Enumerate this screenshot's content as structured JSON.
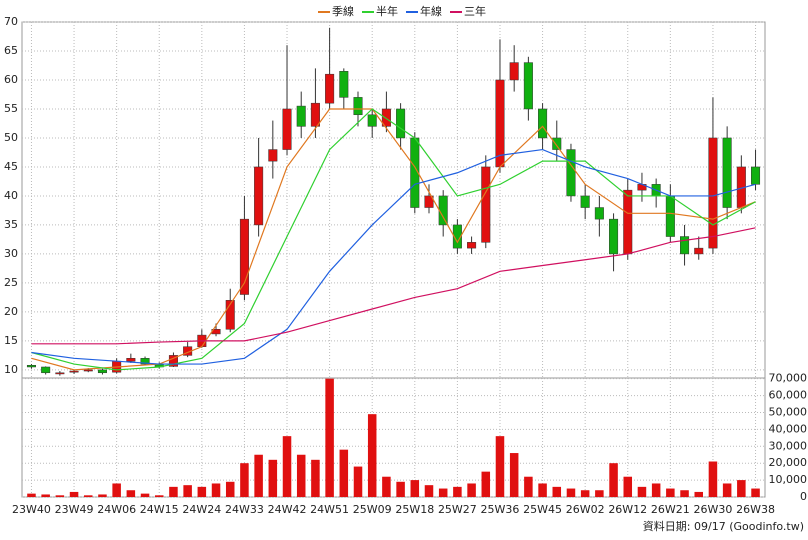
{
  "chart_data": {
    "type": "candlestick",
    "legend_position": "top",
    "up_color": "#e01010",
    "down_color": "#10b010",
    "volume_color": "#e01010",
    "x": [
      0,
      3,
      6,
      9,
      12,
      15,
      18,
      21,
      24,
      27,
      30,
      33,
      36,
      39,
      42,
      45,
      48,
      51,
      54,
      57,
      60,
      63,
      66,
      69,
      72,
      75,
      78,
      81,
      84,
      87,
      90,
      93,
      96,
      99,
      102,
      105,
      108,
      111,
      114,
      117,
      120,
      123,
      126,
      129,
      132,
      135,
      138,
      141,
      144,
      147,
      150,
      153
    ],
    "open": [
      10.8,
      10.5,
      9.3,
      9.6,
      9.8,
      10,
      9.6,
      11.5,
      12,
      11,
      10.6,
      12.5,
      14,
      16.2,
      17,
      23,
      35,
      46,
      48,
      55.5,
      52,
      56,
      61.5,
      57,
      54,
      52,
      55,
      50,
      38,
      40,
      35,
      31,
      32,
      45,
      60,
      63,
      55,
      50,
      48,
      40,
      38,
      36,
      30,
      41,
      42,
      40,
      33,
      30,
      31,
      50,
      38,
      45
    ],
    "high": [
      11,
      10.6,
      9.8,
      10,
      10.3,
      10.2,
      12,
      12.8,
      12.3,
      11.3,
      13,
      14.8,
      17,
      18,
      24,
      40,
      50,
      53,
      66,
      58,
      62,
      69,
      62,
      58,
      55,
      58,
      56,
      51,
      42,
      41,
      36,
      33,
      47,
      67,
      66,
      64,
      56,
      53,
      49,
      42,
      40,
      37,
      43,
      44,
      43,
      42,
      35,
      33,
      57,
      52,
      47,
      48
    ],
    "low": [
      10.2,
      9.2,
      9,
      9.3,
      9.6,
      9.2,
      9.4,
      11.2,
      10.8,
      10.2,
      10.5,
      12.2,
      13.8,
      15.8,
      16.5,
      22,
      33,
      43,
      47,
      50,
      50,
      55,
      55,
      52,
      50,
      51,
      48,
      37,
      37,
      33,
      30,
      30,
      31,
      44,
      58,
      53,
      48,
      46,
      39,
      36,
      33,
      27,
      29,
      39,
      38,
      32,
      28,
      29,
      30,
      36,
      37,
      41
    ],
    "close": [
      10.5,
      9.5,
      9.5,
      9.8,
      10,
      9.5,
      11.5,
      12,
      11,
      10.5,
      12.5,
      14,
      16,
      17,
      22,
      36,
      45,
      48,
      55,
      52,
      56,
      61,
      57,
      54,
      52,
      55,
      50,
      38,
      40,
      35,
      31,
      32,
      45,
      60,
      63,
      55,
      50,
      48,
      40,
      38,
      36,
      30,
      41,
      42,
      40,
      33,
      30,
      31,
      50,
      38,
      45,
      42
    ],
    "volume": [
      2000,
      1500,
      1000,
      3000,
      1000,
      1500,
      8000,
      4000,
      2000,
      1000,
      6000,
      7000,
      6000,
      8000,
      9000,
      20000,
      25000,
      22000,
      36000,
      25000,
      22000,
      70000,
      28000,
      18000,
      49000,
      12000,
      9000,
      10000,
      7000,
      5000,
      6000,
      8000,
      15000,
      36000,
      26000,
      12000,
      8000,
      6000,
      5000,
      4000,
      4000,
      20000,
      12000,
      6000,
      8000,
      5000,
      4000,
      3000,
      21000,
      8000,
      10000,
      5000
    ],
    "lines": [
      {
        "name": "季線",
        "color": "#e07820",
        "x": [
          0,
          9,
          18,
          27,
          36,
          45,
          54,
          63,
          72,
          81,
          90,
          99,
          108,
          117,
          126,
          135,
          144,
          153
        ],
        "values": [
          12,
          10,
          10.5,
          11,
          14,
          25,
          45,
          55,
          55,
          45,
          32,
          45,
          52,
          42,
          37,
          37,
          36,
          39
        ]
      },
      {
        "name": "半年",
        "color": "#30d030",
        "x": [
          0,
          9,
          18,
          27,
          36,
          45,
          54,
          63,
          72,
          81,
          90,
          99,
          108,
          117,
          126,
          135,
          144,
          153
        ],
        "values": [
          13,
          11,
          10,
          10.5,
          12,
          18,
          33,
          48,
          55,
          50,
          40,
          42,
          46,
          46,
          40,
          40,
          35,
          39
        ]
      },
      {
        "name": "年線",
        "color": "#2060e0",
        "x": [
          0,
          9,
          18,
          27,
          36,
          45,
          54,
          63,
          72,
          81,
          90,
          99,
          108,
          117,
          126,
          135,
          144,
          153
        ],
        "values": [
          13,
          12,
          11.5,
          11,
          11,
          12,
          17,
          27,
          35,
          42,
          44,
          47,
          48,
          45,
          43,
          40,
          40,
          42
        ]
      },
      {
        "name": "三年",
        "color": "#d01060",
        "x": [
          0,
          9,
          18,
          27,
          36,
          45,
          54,
          63,
          72,
          81,
          90,
          99,
          108,
          117,
          126,
          135,
          144,
          153
        ],
        "values": [
          14.5,
          14.5,
          14.5,
          14.8,
          15,
          15,
          16.5,
          18.5,
          20.5,
          22.5,
          24,
          27,
          28,
          29,
          30,
          32,
          33,
          34.5
        ]
      }
    ],
    "xlim": [
      -2,
      155
    ],
    "xticks": [
      {
        "value": 0,
        "label": "23W40"
      },
      {
        "value": 9,
        "label": "23W49"
      },
      {
        "value": 18,
        "label": "24W06"
      },
      {
        "value": 27,
        "label": "24W15"
      },
      {
        "value": 36,
        "label": "24W24"
      },
      {
        "value": 45,
        "label": "24W33"
      },
      {
        "value": 54,
        "label": "24W42"
      },
      {
        "value": 63,
        "label": "24W51"
      },
      {
        "value": 72,
        "label": "25W09"
      },
      {
        "value": 81,
        "label": "25W18"
      },
      {
        "value": 90,
        "label": "25W27"
      },
      {
        "value": 99,
        "label": "25W36"
      },
      {
        "value": 108,
        "label": "25W45"
      },
      {
        "value": 117,
        "label": "26W02"
      },
      {
        "value": 126,
        "label": "26W12"
      },
      {
        "value": 135,
        "label": "26W21"
      },
      {
        "value": 144,
        "label": "26W30"
      },
      {
        "value": 153,
        "label": "26W38"
      }
    ],
    "ylim": [
      8.6,
      70
    ],
    "yticks": [
      10,
      15,
      20,
      25,
      30,
      35,
      40,
      45,
      50,
      55,
      60,
      65,
      70
    ],
    "y2lim": [
      0,
      70400
    ],
    "y2ticks": [
      0,
      {
        "value": 10000,
        "label": "10,000"
      },
      {
        "value": 20000,
        "label": "20,000"
      },
      {
        "value": 30000,
        "label": "30,000"
      },
      {
        "value": 40000,
        "label": "40,000"
      },
      {
        "value": 50000,
        "label": "50,000"
      },
      {
        "value": 60000,
        "label": "60,000"
      },
      {
        "value": 70000,
        "label": "70,000"
      }
    ],
    "grid": true,
    "footer": "資料日期: 09/17  (Goodinfo.tw)"
  }
}
